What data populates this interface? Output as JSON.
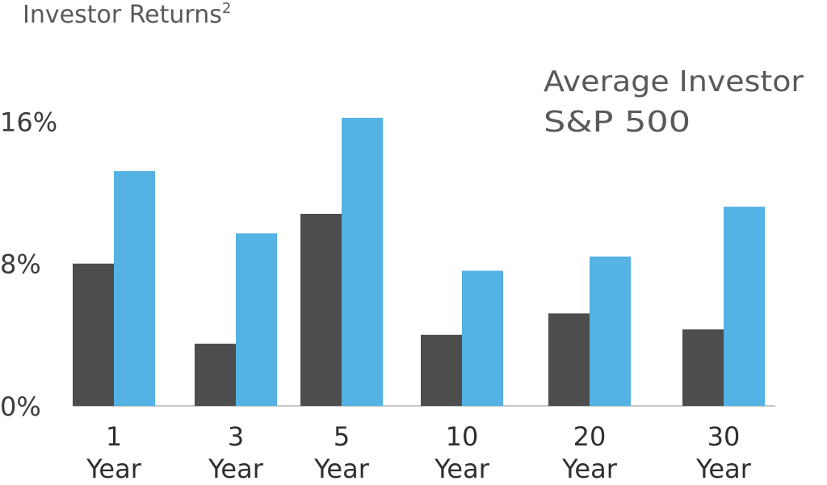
{
  "chart_data": {
    "type": "bar",
    "title": "Investor Returns",
    "title_superscript": "2",
    "categories": [
      [
        "1",
        "Year"
      ],
      [
        "3",
        "Year"
      ],
      [
        "5",
        "Year"
      ],
      [
        "10",
        "Year"
      ],
      [
        "20",
        "Year"
      ],
      [
        "30",
        "Year"
      ]
    ],
    "series": [
      {
        "name": "Average Investor",
        "color": "#4d4d4d",
        "values": [
          8.0,
          3.5,
          10.8,
          4.0,
          5.2,
          4.3
        ]
      },
      {
        "name": "S&P 500",
        "color": "#54b2e4",
        "values": [
          13.2,
          9.7,
          16.2,
          7.6,
          8.4,
          11.2
        ]
      }
    ],
    "y_ticks": [
      {
        "value": 0,
        "label": "0%"
      },
      {
        "value": 8,
        "label": "8%"
      },
      {
        "value": 16,
        "label": "16%"
      }
    ],
    "ylim": [
      0,
      16.5
    ],
    "grid": false,
    "legend_position": "top-right"
  }
}
